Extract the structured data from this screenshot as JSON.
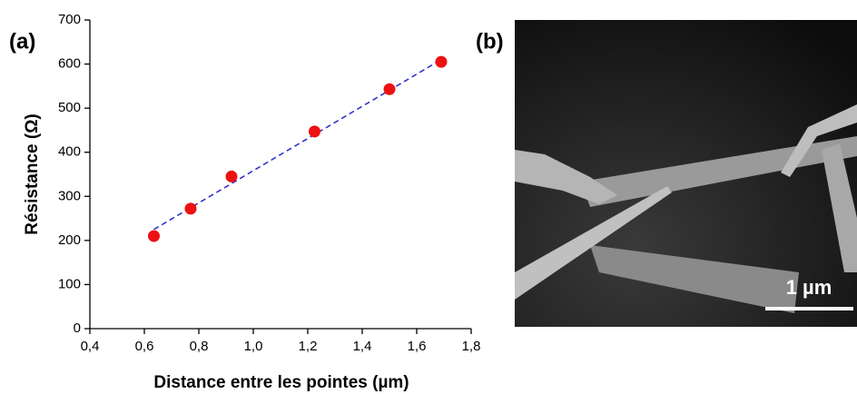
{
  "chart_data": {
    "type": "scatter",
    "xlabel": "Distance entre les pointes (µm)",
    "ylabel": "Résistance (Ω)",
    "x": [
      0.635,
      0.77,
      0.92,
      1.225,
      1.5,
      1.69
    ],
    "values": [
      210,
      272,
      345,
      447,
      543,
      605
    ],
    "color": "#ee1111",
    "fit_line": {
      "x": [
        0.635,
        1.69
      ],
      "y": [
        225,
        610
      ],
      "color": "#3333cc"
    },
    "xlim": [
      0.4,
      1.8
    ],
    "xticks": [
      {
        "value": 0.4,
        "label": "0,4"
      },
      {
        "value": 0.6,
        "label": "0,6"
      },
      {
        "value": 0.8,
        "label": "0,8"
      },
      {
        "value": 1.0,
        "label": "1,0"
      },
      {
        "value": 1.2,
        "label": "1,2"
      },
      {
        "value": 1.4,
        "label": "1,4"
      },
      {
        "value": 1.6,
        "label": "1,6"
      },
      {
        "value": 1.8,
        "label": "1,8"
      }
    ],
    "ylim": [
      0,
      700
    ],
    "yticks": [
      0,
      100,
      200,
      300,
      400,
      500,
      600,
      700
    ]
  },
  "panel_labels": [
    "(a)",
    "(b)"
  ],
  "image": {
    "scale_bar": "1 µm"
  }
}
